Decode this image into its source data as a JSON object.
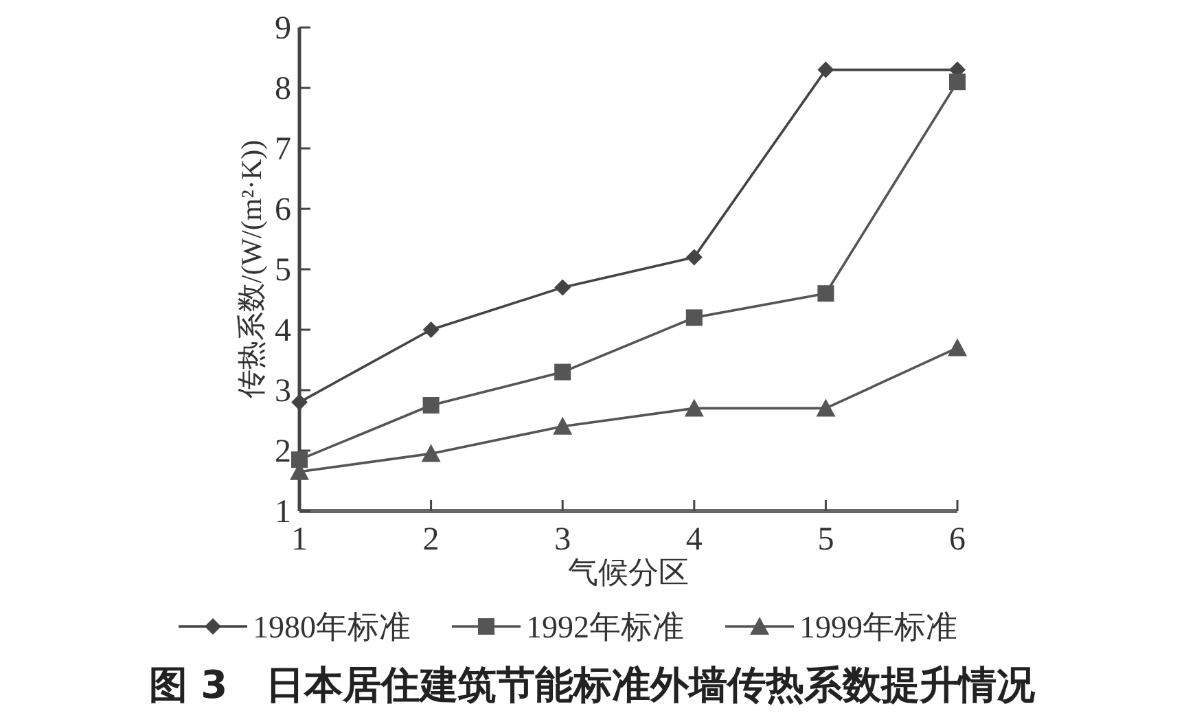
{
  "chart_data": {
    "type": "line",
    "title": "图 3　日本居住建筑节能标准外墙传热系数提升情况",
    "xlabel": "气候分区",
    "ylabel": "传热系数/(W/(m²·K))",
    "x": [
      1,
      2,
      3,
      4,
      5,
      6
    ],
    "series": [
      {
        "name": "1980年标准",
        "color": "#444444",
        "marker": "diamond",
        "values": [
          2.8,
          4.0,
          4.7,
          5.2,
          8.3,
          8.3
        ]
      },
      {
        "name": "1992年标准",
        "color": "#555555",
        "marker": "square",
        "values": [
          1.85,
          2.75,
          3.3,
          4.2,
          4.6,
          8.1
        ]
      },
      {
        "name": "1999年标准",
        "color": "#555555",
        "marker": "triangle",
        "values": [
          1.65,
          1.95,
          2.4,
          2.7,
          2.7,
          3.7
        ]
      }
    ],
    "xlim": [
      1,
      6
    ],
    "xticks": [
      1,
      2,
      3,
      4,
      5,
      6
    ],
    "ylim": [
      1,
      9
    ],
    "yticks": [
      1,
      2,
      3,
      4,
      5,
      6,
      7,
      8,
      9
    ],
    "grid": false,
    "legend": "bottom",
    "line_style": "solid"
  }
}
